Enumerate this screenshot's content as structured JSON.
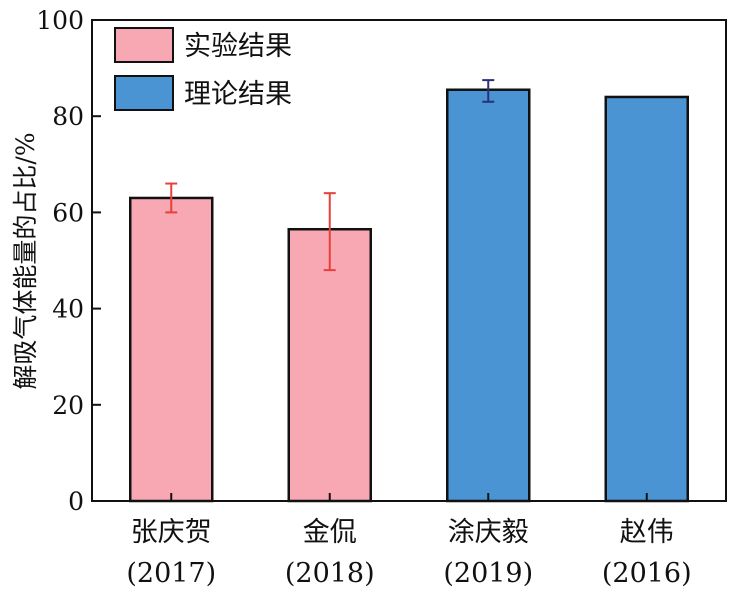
{
  "chart_data": {
    "type": "bar",
    "categories": [
      "张庆贺",
      "金侃",
      "涂庆毅",
      "赵伟"
    ],
    "category_years": [
      "(2017)",
      "(2018)",
      "(2019)",
      "(2016)"
    ],
    "values": [
      63,
      56.5,
      85.5,
      84
    ],
    "error_bars": [
      {
        "low": 60,
        "high": 66
      },
      {
        "low": 48,
        "high": 64
      },
      {
        "low": 83,
        "high": 87.5
      },
      null
    ],
    "bar_groups": [
      0,
      0,
      1,
      1
    ],
    "legend": [
      "实验结果",
      "理论结果"
    ],
    "legend_position": "top-left",
    "ylabel": "解吸气体能量的占比/%",
    "xlabel": "",
    "title": "",
    "ylim": [
      0,
      100
    ],
    "yticks": [
      0,
      20,
      40,
      60,
      80,
      100
    ],
    "grid": false,
    "colors": {
      "experimental": "#f7a8b2",
      "theoretical": "#4b94d3",
      "error_experimental": "#e8403a",
      "error_theoretical": "#2a2f7a",
      "outline": "#111111"
    }
  }
}
